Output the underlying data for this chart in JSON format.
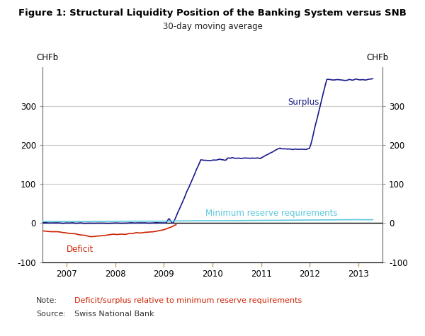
{
  "title": "Figure 1: Structural Liquidity Position of the Banking System versus SNB",
  "subtitle": "30-day moving average",
  "ylabel_left": "CHFb",
  "ylabel_right": "CHFb",
  "ylim": [
    -100,
    400
  ],
  "yticks": [
    -100,
    0,
    100,
    200,
    300
  ],
  "xlim_start": 2006.5,
  "xlim_end": 2013.5,
  "xtick_years": [
    2007,
    2008,
    2009,
    2010,
    2011,
    2012,
    2013
  ],
  "surplus_color": "#1a1a8c",
  "deficit_color": "#cc2200",
  "reserve_color": "#5bc8dc",
  "zero_line_color": "#000000",
  "grid_color": "#cccccc",
  "label_surplus": "Surplus",
  "label_deficit": "Deficit",
  "label_reserve": "Minimum reserve requirements",
  "note_label_color": "#333333",
  "note_text_color": "#cc2200",
  "background_color": "#ffffff",
  "tick_color_x": "#c8a060",
  "tick_color_y": "#999999"
}
